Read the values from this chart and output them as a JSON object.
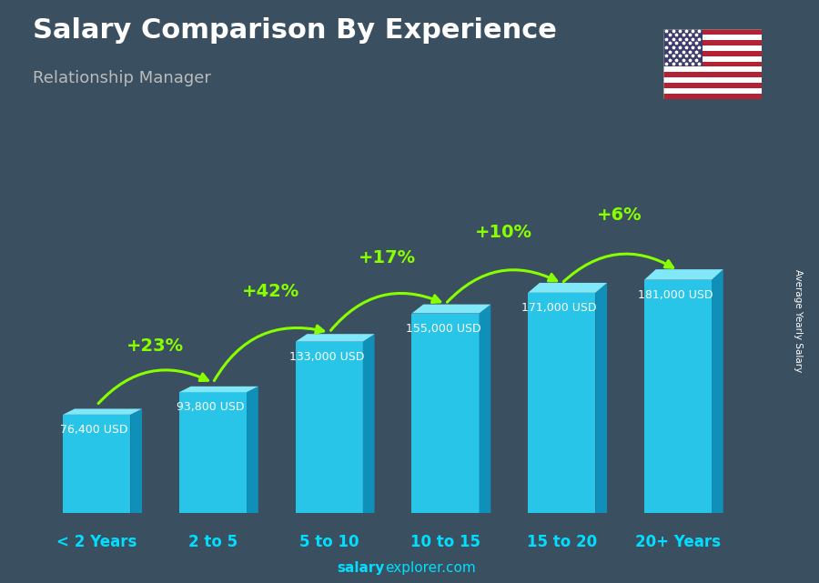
{
  "title": "Salary Comparison By Experience",
  "subtitle": "Relationship Manager",
  "categories": [
    "< 2 Years",
    "2 to 5",
    "5 to 10",
    "10 to 15",
    "15 to 20",
    "20+ Years"
  ],
  "values": [
    76400,
    93800,
    133000,
    155000,
    171000,
    181000
  ],
  "salary_labels": [
    "76,400 USD",
    "93,800 USD",
    "133,000 USD",
    "155,000 USD",
    "171,000 USD",
    "181,000 USD"
  ],
  "pct_changes": [
    "+23%",
    "+42%",
    "+17%",
    "+10%",
    "+6%"
  ],
  "bar_face_color": "#29C5E8",
  "bar_top_color": "#80E8F8",
  "bar_side_color": "#1090B8",
  "green_color": "#88FF00",
  "white_color": "#FFFFFF",
  "cyan_color": "#00DFFF",
  "ylabel": "Average Yearly Salary",
  "footer_bold": "salary",
  "footer_normal": "explorer.com",
  "bg_color": "#3a4f60",
  "title_fontsize": 22,
  "subtitle_fontsize": 13,
  "label_fontsize": 9,
  "pct_fontsize": 14,
  "cat_fontsize": 12
}
